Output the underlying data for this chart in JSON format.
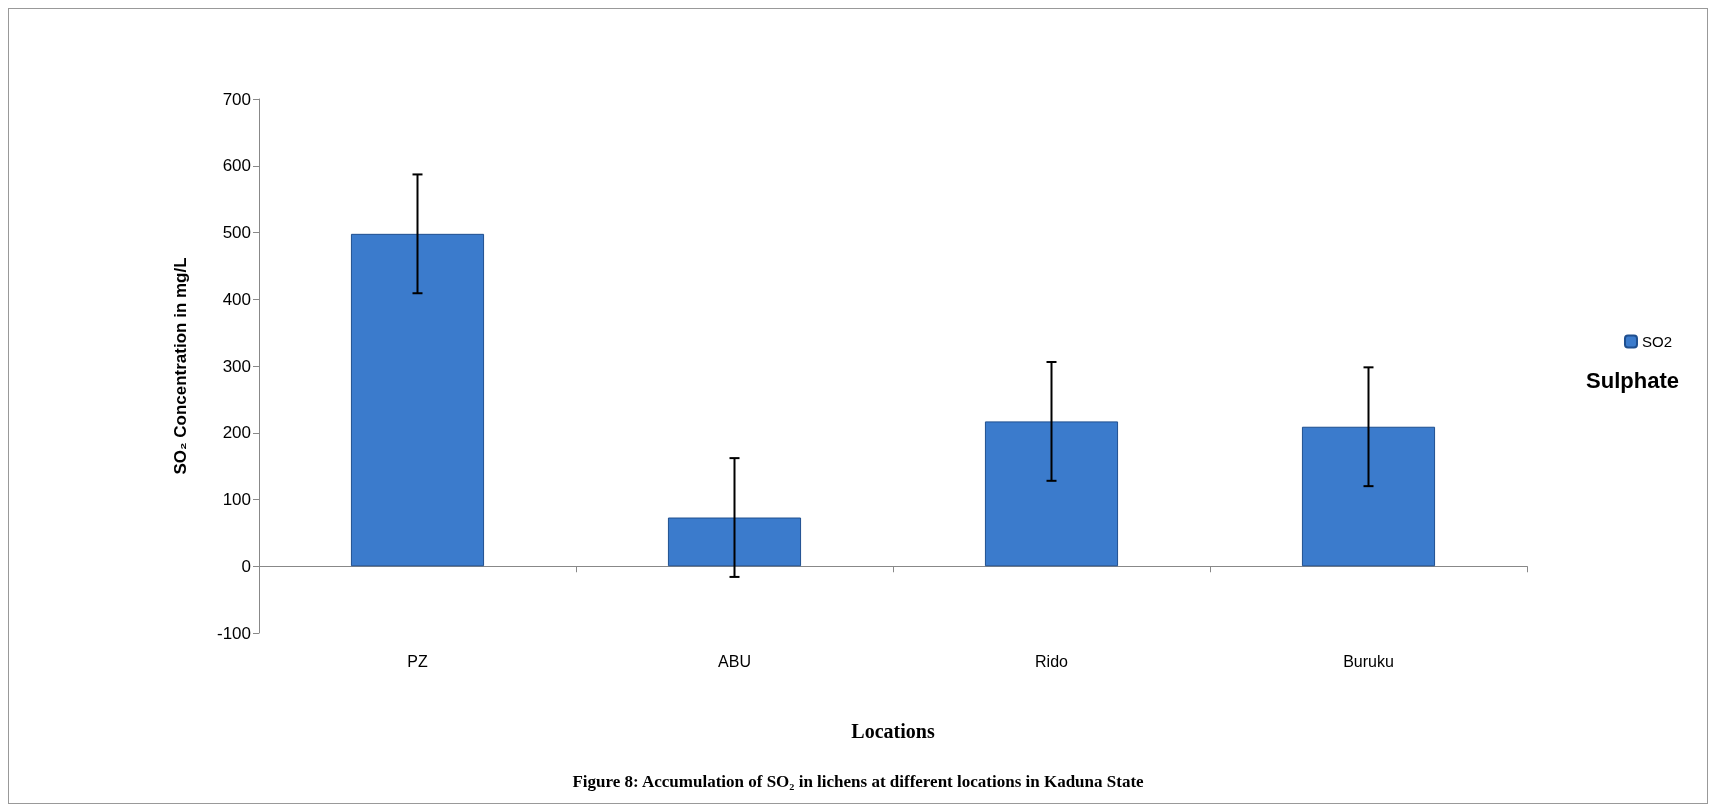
{
  "chart_data": {
    "type": "bar",
    "title": "Figure 8: Accumulation of SO₂ in lichens at different locations in Kaduna State",
    "xlabel": "Locations",
    "ylabel": "SO₂ Concentration in mg/L",
    "categories": [
      "PZ",
      "ABU",
      "Rido",
      "Buruku"
    ],
    "series": [
      {
        "name": "SO2",
        "color": "#3b7bcc",
        "values": [
          498,
          73,
          217,
          209
        ],
        "errors": [
          89,
          89,
          89,
          89
        ]
      }
    ],
    "ylim": [
      -100,
      700
    ],
    "yticks": [
      -100,
      0,
      100,
      200,
      300,
      400,
      500,
      600,
      700
    ],
    "legend": "right",
    "annotations": [
      "Sulphate"
    ]
  }
}
